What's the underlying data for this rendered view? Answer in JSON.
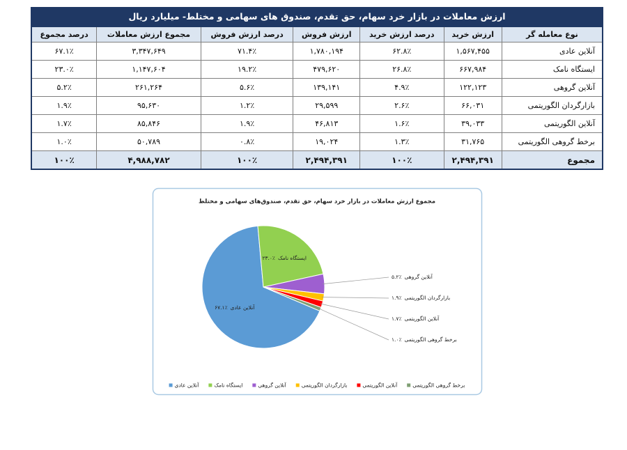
{
  "table": {
    "title": "ارزش معاملات در بازار خرد سهام، حق تقدم، صندوق های سهامی و مختلط- میلیارد ریال",
    "headers": [
      "نوع معامله گر",
      "ارزش خرید",
      "درصد ارزش خرید",
      "ارزش فروش",
      "درصد ارزش فروش",
      "مجموع ارزش معاملات",
      "درصد مجموع"
    ],
    "rows": [
      [
        "آنلاین عادی",
        "۱,۵۶۷,۴۵۵",
        "۶۲.۸٪",
        "۱,۷۸۰,۱۹۴",
        "۷۱.۴٪",
        "۳,۳۴۷,۶۴۹",
        "۶۷.۱٪"
      ],
      [
        "ایستگاه نامک",
        "۶۶۷,۹۸۴",
        "۲۶.۸٪",
        "۴۷۹,۶۲۰",
        "۱۹.۲٪",
        "۱,۱۴۷,۶۰۴",
        "۲۳.۰٪"
      ],
      [
        "آنلاین گروهی",
        "۱۲۲,۱۲۳",
        "۴.۹٪",
        "۱۳۹,۱۴۱",
        "۵.۶٪",
        "۲۶۱,۲۶۴",
        "۵.۲٪"
      ],
      [
        "بازارگردان الگوریتمی",
        "۶۶,۰۳۱",
        "۲.۶٪",
        "۲۹,۵۹۹",
        "۱.۲٪",
        "۹۵,۶۳۰",
        "۱.۹٪"
      ],
      [
        "آنلاین الگوریتمی",
        "۳۹,۰۳۳",
        "۱.۶٪",
        "۴۶,۸۱۳",
        "۱.۹٪",
        "۸۵,۸۴۶",
        "۱.۷٪"
      ],
      [
        "برخط گروهی الگوریتمی",
        "۳۱,۷۶۵",
        "۱.۳٪",
        "۱۹,۰۲۴",
        "۰.۸٪",
        "۵۰,۷۸۹",
        "۱.۰٪"
      ],
      [
        "مجموع",
        "۲,۴۹۴,۳۹۱",
        "۱۰۰٪",
        "۲,۴۹۴,۳۹۱",
        "۱۰۰٪",
        "۴,۹۸۸,۷۸۲",
        "۱۰۰٪"
      ]
    ]
  },
  "chart_data": {
    "type": "pie",
    "title": "مجموع ارزش معاملات در بازار خرد سهام، حق تقدم، صندوق‌های سهامی و مختلط",
    "categories": [
      "آنلاین عادی",
      "ایستگاه نامک",
      "آنلاین گروهی",
      "بازارگردان الگوریتمی",
      "آنلاین الگوریتمی",
      "برخط گروهی الگوریتمی"
    ],
    "values": [
      67.1,
      23.0,
      5.2,
      1.9,
      1.7,
      1.0
    ],
    "value_labels": [
      "۶۷.۱٪",
      "۲۳.۰٪",
      "۵.۲٪",
      "۱.۹٪",
      "۱.۷٪",
      "۱.۰٪"
    ],
    "colors": [
      "#5b9bd5",
      "#92d050",
      "#9e5fd0",
      "#ffc000",
      "#ff0000",
      "#7f9f73"
    ],
    "legend": "bottom"
  }
}
